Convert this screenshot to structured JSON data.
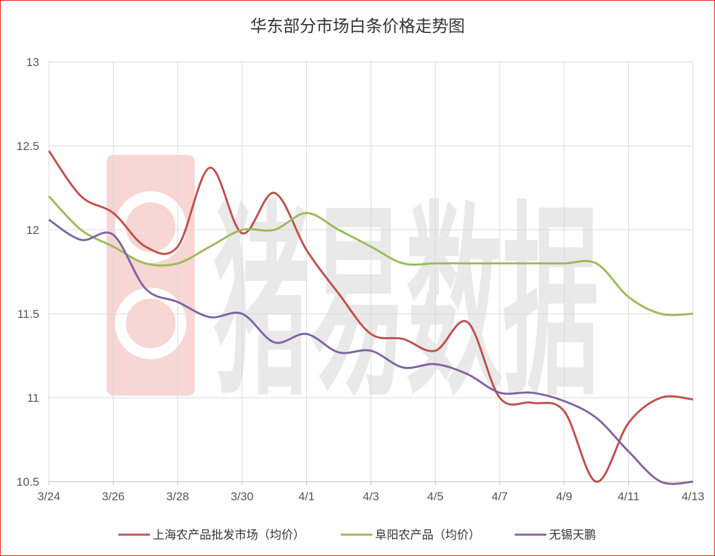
{
  "chart_data": {
    "type": "line",
    "title": "华东部分市场白条价格走势图",
    "xlabel": "",
    "ylabel": "",
    "ylim": [
      10.5,
      13
    ],
    "yticks": [
      "13",
      "12.5",
      "12",
      "11.5",
      "11",
      "10.5"
    ],
    "xticks": [
      "3/24",
      "3/26",
      "3/28",
      "3/30",
      "4/1",
      "4/3",
      "4/5",
      "4/7",
      "4/9",
      "4/11",
      "4/13"
    ],
    "x": [
      "3/24",
      "3/25",
      "3/26",
      "3/27",
      "3/28",
      "3/29",
      "3/30",
      "3/31",
      "4/1",
      "4/2",
      "4/3",
      "4/4",
      "4/5",
      "4/6",
      "4/7",
      "4/8",
      "4/9",
      "4/10",
      "4/11",
      "4/12",
      "4/13"
    ],
    "grid": true,
    "legend_position": "bottom",
    "series": [
      {
        "name": "上海农产品批发市场（均价）",
        "color": "#c0504d",
        "values": [
          12.47,
          12.2,
          12.1,
          11.9,
          11.9,
          12.37,
          11.98,
          12.22,
          11.88,
          11.62,
          11.38,
          11.35,
          11.28,
          11.45,
          11.0,
          10.97,
          10.92,
          10.5,
          10.85,
          11.0,
          10.99
        ]
      },
      {
        "name": "阜阳农产品（均价）",
        "color": "#9bbb59",
        "values": [
          12.2,
          12.0,
          11.9,
          11.8,
          11.8,
          11.9,
          12.0,
          12.0,
          12.1,
          12.0,
          11.9,
          11.8,
          11.8,
          11.8,
          11.8,
          11.8,
          11.8,
          11.8,
          11.6,
          11.5,
          11.5
        ]
      },
      {
        "name": "无锡天鹏",
        "color": "#8064a2",
        "values": [
          12.06,
          11.94,
          11.97,
          11.65,
          11.57,
          11.48,
          11.5,
          11.33,
          11.38,
          11.27,
          11.28,
          11.18,
          11.2,
          11.14,
          11.03,
          11.03,
          10.98,
          10.88,
          10.68,
          10.5,
          10.47
        ]
      }
    ]
  },
  "watermark": "猪易数据"
}
